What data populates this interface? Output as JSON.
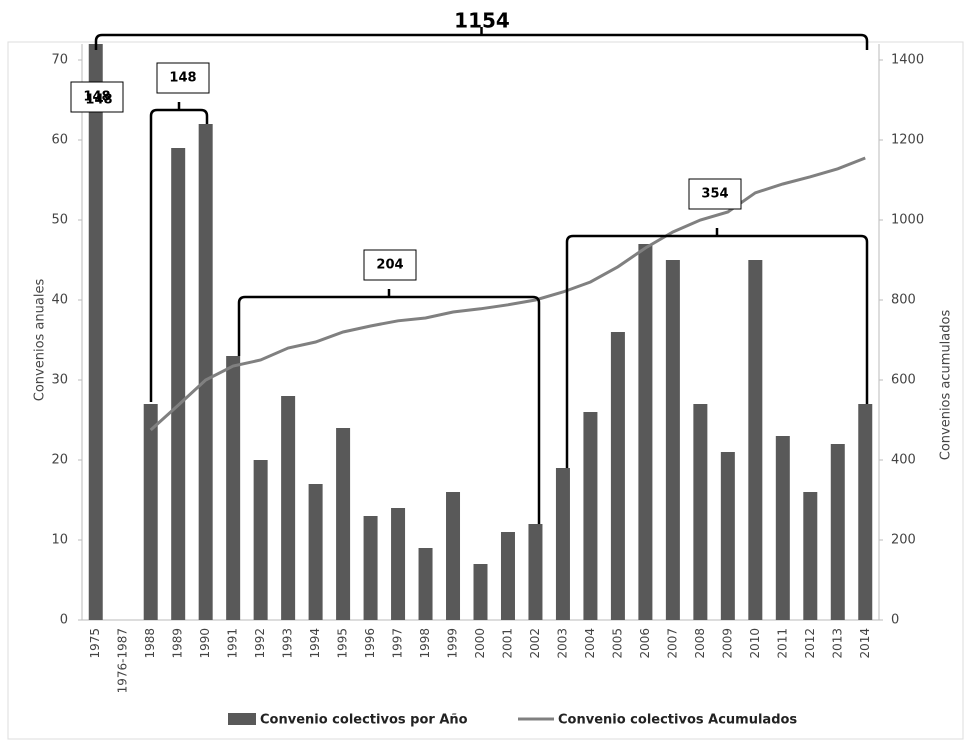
{
  "chart_data": {
    "type": "bar",
    "categories": [
      "1975",
      "1976-1987",
      "1988",
      "1989",
      "1990",
      "1991",
      "1992",
      "1993",
      "1994",
      "1995",
      "1996",
      "1997",
      "1998",
      "1999",
      "2000",
      "2001",
      "2002",
      "2003",
      "2004",
      "2005",
      "2006",
      "2007",
      "2008",
      "2009",
      "2010",
      "2011",
      "2012",
      "2013",
      "2014"
    ],
    "series": [
      {
        "name": "Convenio colectivos por Año",
        "color": "#595959",
        "type": "bar",
        "values": [
          72,
          null,
          27,
          59,
          62,
          33,
          20,
          28,
          17,
          24,
          13,
          14,
          9,
          16,
          7,
          11,
          12,
          19,
          26,
          36,
          47,
          45,
          27,
          21,
          45,
          23,
          16,
          22,
          27
        ]
      },
      {
        "name": "Convenio colectivos Acumulados",
        "color": "#808080",
        "type": "line",
        "axis": "y2",
        "values": [
          null,
          null,
          475,
          537,
          600,
          635,
          650,
          680,
          695,
          720,
          735,
          748,
          755,
          770,
          778,
          788,
          800,
          820,
          845,
          883,
          930,
          970,
          1000,
          1020,
          1068,
          1090,
          1108,
          1128,
          1155
        ]
      }
    ],
    "ylabel": "Convenios anuales",
    "y2label": "Convenios acumulados",
    "ylim": [
      0,
      72
    ],
    "yticks": [
      0,
      10,
      20,
      30,
      40,
      50,
      60,
      70
    ],
    "y2lim": [
      0,
      1440
    ],
    "y2ticks": [
      0,
      200,
      400,
      600,
      800,
      1000,
      1200,
      1400
    ],
    "annotations": [
      "1154",
      "148",
      "148",
      "148",
      "204",
      "354"
    ],
    "grid": false,
    "legend": "bottom"
  }
}
